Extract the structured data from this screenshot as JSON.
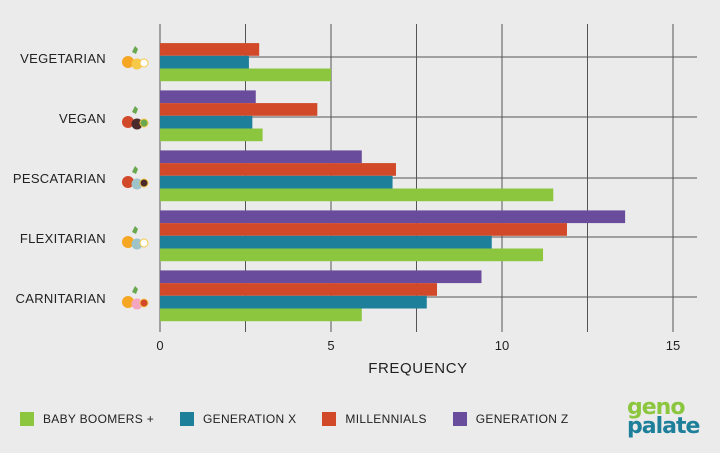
{
  "chart_data": {
    "type": "bar",
    "orientation": "horizontal",
    "categories": [
      "VEGETARIAN",
      "VEGAN",
      "PESCATARIAN",
      "FLEXITARIAN",
      "CARNITARIAN"
    ],
    "series": [
      {
        "name": "BABY BOOMERS +",
        "color": "#8cc63f",
        "values": [
          5.0,
          3.0,
          11.5,
          11.2,
          5.9
        ]
      },
      {
        "name": "GENERATION X",
        "color": "#1e7f9a",
        "values": [
          2.6,
          2.7,
          6.8,
          9.7,
          7.8
        ]
      },
      {
        "name": "MILLENNIALS",
        "color": "#d2492a",
        "values": [
          2.9,
          4.6,
          6.9,
          11.9,
          8.1
        ]
      },
      {
        "name": "GENERATION Z",
        "color": "#6a4c9c",
        "values": [
          null,
          2.8,
          5.9,
          13.6,
          9.4
        ]
      }
    ],
    "xlabel": "FREQUENCY",
    "xlim": [
      0,
      16
    ],
    "xticks": [
      0,
      5,
      10,
      15
    ],
    "grid": true,
    "legend_position": "bottom"
  },
  "category_icons": [
    "vegetables-egg-icon",
    "vegetables-icon",
    "fish-vegetables-icon",
    "egg-fish-vegetables-icon",
    "meat-vegetables-icon"
  ],
  "logo": {
    "line1": "geno",
    "line2": "palate"
  }
}
